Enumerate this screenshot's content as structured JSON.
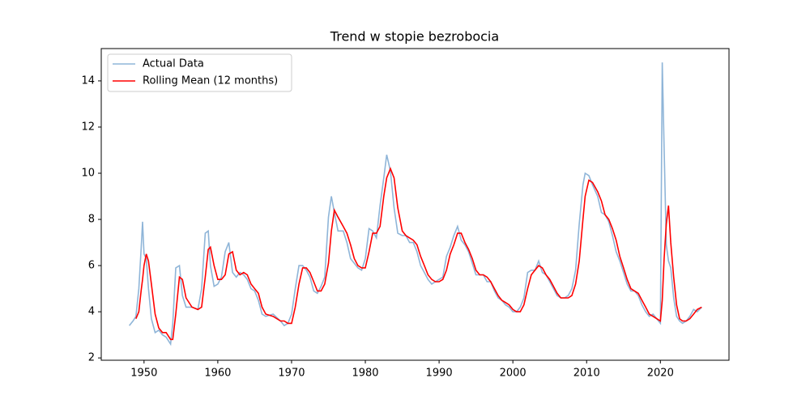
{
  "chart_data": {
    "type": "line",
    "title": "Trend w stopie bezrobocia",
    "x": [
      1948.0,
      1948.5,
      1948.9,
      1949.3,
      1949.6,
      1949.8,
      1950.0,
      1950.3,
      1950.6,
      1951.0,
      1951.5,
      1952.0,
      1952.5,
      1953.0,
      1953.6,
      1953.9,
      1954.3,
      1954.8,
      1955.2,
      1955.7,
      1956.5,
      1957.3,
      1957.8,
      1958.3,
      1958.7,
      1959.0,
      1959.5,
      1960.0,
      1960.5,
      1961.0,
      1961.5,
      1962.0,
      1962.5,
      1963.0,
      1963.5,
      1964.0,
      1964.5,
      1965.0,
      1965.5,
      1966.0,
      1966.5,
      1967.5,
      1968.5,
      1969.0,
      1969.5,
      1970.0,
      1970.5,
      1971.0,
      1971.5,
      1972.0,
      1972.5,
      1973.0,
      1973.5,
      1974.0,
      1974.5,
      1975.0,
      1975.4,
      1975.8,
      1976.3,
      1977.0,
      1977.5,
      1978.0,
      1978.5,
      1979.0,
      1979.5,
      1980.0,
      1980.5,
      1981.0,
      1981.5,
      1982.0,
      1982.5,
      1982.9,
      1983.4,
      1983.9,
      1984.4,
      1985.0,
      1985.5,
      1986.0,
      1986.5,
      1987.0,
      1987.5,
      1988.0,
      1988.5,
      1989.0,
      1989.5,
      1990.0,
      1990.5,
      1991.0,
      1991.5,
      1992.0,
      1992.5,
      1993.0,
      1993.5,
      1994.0,
      1994.5,
      1995.0,
      1995.5,
      1996.0,
      1996.5,
      1997.0,
      1997.5,
      1998.0,
      1998.5,
      1999.0,
      1999.5,
      2000.0,
      2000.5,
      2001.0,
      2001.5,
      2002.0,
      2002.5,
      2003.0,
      2003.5,
      2004.0,
      2004.5,
      2005.0,
      2005.5,
      2006.0,
      2006.5,
      2007.0,
      2007.5,
      2008.0,
      2008.5,
      2009.0,
      2009.5,
      2009.8,
      2010.3,
      2010.8,
      2011.5,
      2012.0,
      2012.5,
      2013.0,
      2013.5,
      2014.0,
      2014.5,
      2015.0,
      2015.5,
      2016.0,
      2016.5,
      2017.0,
      2017.5,
      2018.0,
      2018.5,
      2019.0,
      2019.5,
      2020.0,
      2020.25,
      2020.5,
      2020.8,
      2021.1,
      2021.4,
      2021.8,
      2022.2,
      2022.6,
      2023.0,
      2023.5,
      2024.0,
      2024.5,
      2025.0,
      2025.6
    ],
    "series": [
      {
        "name": "Actual Data",
        "color": "#8fb5d8",
        "values": [
          3.4,
          3.6,
          3.8,
          5.0,
          6.7,
          7.9,
          6.5,
          6.3,
          5.0,
          3.7,
          3.1,
          3.2,
          3.0,
          2.9,
          2.6,
          3.5,
          5.9,
          6.0,
          4.7,
          4.2,
          4.2,
          4.1,
          5.0,
          7.4,
          7.5,
          6.0,
          5.1,
          5.2,
          5.5,
          6.6,
          7.0,
          5.7,
          5.5,
          5.7,
          5.6,
          5.4,
          5.0,
          4.9,
          4.5,
          3.9,
          3.8,
          3.9,
          3.6,
          3.4,
          3.5,
          3.9,
          5.0,
          6.0,
          6.0,
          5.8,
          5.5,
          4.9,
          4.8,
          5.1,
          5.5,
          8.1,
          9.0,
          8.3,
          7.5,
          7.5,
          7.0,
          6.3,
          6.1,
          5.9,
          5.8,
          6.3,
          7.6,
          7.5,
          7.2,
          8.6,
          9.8,
          10.8,
          10.1,
          8.5,
          7.4,
          7.3,
          7.3,
          7.0,
          7.0,
          6.6,
          6.0,
          5.7,
          5.4,
          5.2,
          5.3,
          5.4,
          5.5,
          6.4,
          6.8,
          7.3,
          7.7,
          7.1,
          6.9,
          6.6,
          6.1,
          5.6,
          5.6,
          5.6,
          5.3,
          5.3,
          4.9,
          4.6,
          4.5,
          4.3,
          4.2,
          4.0,
          4.0,
          4.2,
          4.6,
          5.7,
          5.8,
          5.8,
          6.2,
          5.7,
          5.6,
          5.3,
          5.0,
          4.7,
          4.6,
          4.6,
          4.7,
          5.0,
          5.8,
          7.8,
          9.5,
          10.0,
          9.9,
          9.5,
          9.0,
          8.3,
          8.2,
          7.9,
          7.3,
          6.6,
          6.2,
          5.7,
          5.2,
          4.9,
          4.9,
          4.7,
          4.3,
          4.0,
          3.8,
          3.9,
          3.7,
          3.5,
          14.8,
          11.1,
          6.9,
          6.2,
          5.9,
          4.6,
          3.8,
          3.6,
          3.5,
          3.6,
          3.8,
          4.1,
          4.0,
          4.2
        ]
      },
      {
        "name": "Rolling Mean (12 months)",
        "color": "#ff0000",
        "values": [
          null,
          null,
          3.7,
          4.0,
          4.9,
          5.4,
          6.0,
          6.5,
          6.2,
          5.2,
          3.9,
          3.3,
          3.1,
          3.1,
          2.8,
          2.8,
          3.9,
          5.5,
          5.4,
          4.6,
          4.2,
          4.1,
          4.2,
          5.5,
          6.7,
          6.8,
          6.0,
          5.4,
          5.4,
          5.6,
          6.5,
          6.6,
          5.8,
          5.6,
          5.7,
          5.6,
          5.2,
          5.0,
          4.8,
          4.2,
          3.9,
          3.8,
          3.6,
          3.6,
          3.5,
          3.5,
          4.2,
          5.2,
          5.9,
          5.9,
          5.7,
          5.3,
          4.9,
          4.9,
          5.2,
          6.1,
          7.5,
          8.4,
          8.1,
          7.7,
          7.4,
          6.9,
          6.3,
          6.0,
          5.9,
          5.9,
          6.6,
          7.4,
          7.4,
          7.7,
          9.0,
          9.8,
          10.2,
          9.8,
          8.5,
          7.5,
          7.3,
          7.2,
          7.1,
          6.9,
          6.4,
          6.0,
          5.6,
          5.4,
          5.3,
          5.3,
          5.4,
          5.8,
          6.5,
          6.9,
          7.4,
          7.4,
          7.0,
          6.7,
          6.3,
          5.8,
          5.6,
          5.6,
          5.5,
          5.3,
          5.0,
          4.7,
          4.5,
          4.4,
          4.3,
          4.1,
          4.0,
          4.0,
          4.3,
          5.0,
          5.6,
          5.8,
          6.0,
          5.9,
          5.6,
          5.4,
          5.1,
          4.8,
          4.6,
          4.6,
          4.6,
          4.7,
          5.2,
          6.2,
          8.0,
          9.0,
          9.7,
          9.6,
          9.2,
          8.8,
          8.2,
          8.0,
          7.6,
          7.1,
          6.4,
          5.9,
          5.4,
          5.0,
          4.9,
          4.8,
          4.5,
          4.2,
          3.9,
          3.8,
          3.7,
          3.6,
          4.5,
          6.3,
          7.8,
          8.6,
          7.0,
          5.5,
          4.3,
          3.7,
          3.6,
          3.6,
          3.7,
          3.9,
          4.1,
          4.2
        ]
      }
    ],
    "xlim": [
      1944.2,
      2029.3
    ],
    "ylim": [
      1.9,
      15.4
    ],
    "xticks": [
      1950,
      1960,
      1970,
      1980,
      1990,
      2000,
      2010,
      2020
    ],
    "yticks": [
      2,
      4,
      6,
      8,
      10,
      12,
      14
    ],
    "legend": "upper-left"
  }
}
